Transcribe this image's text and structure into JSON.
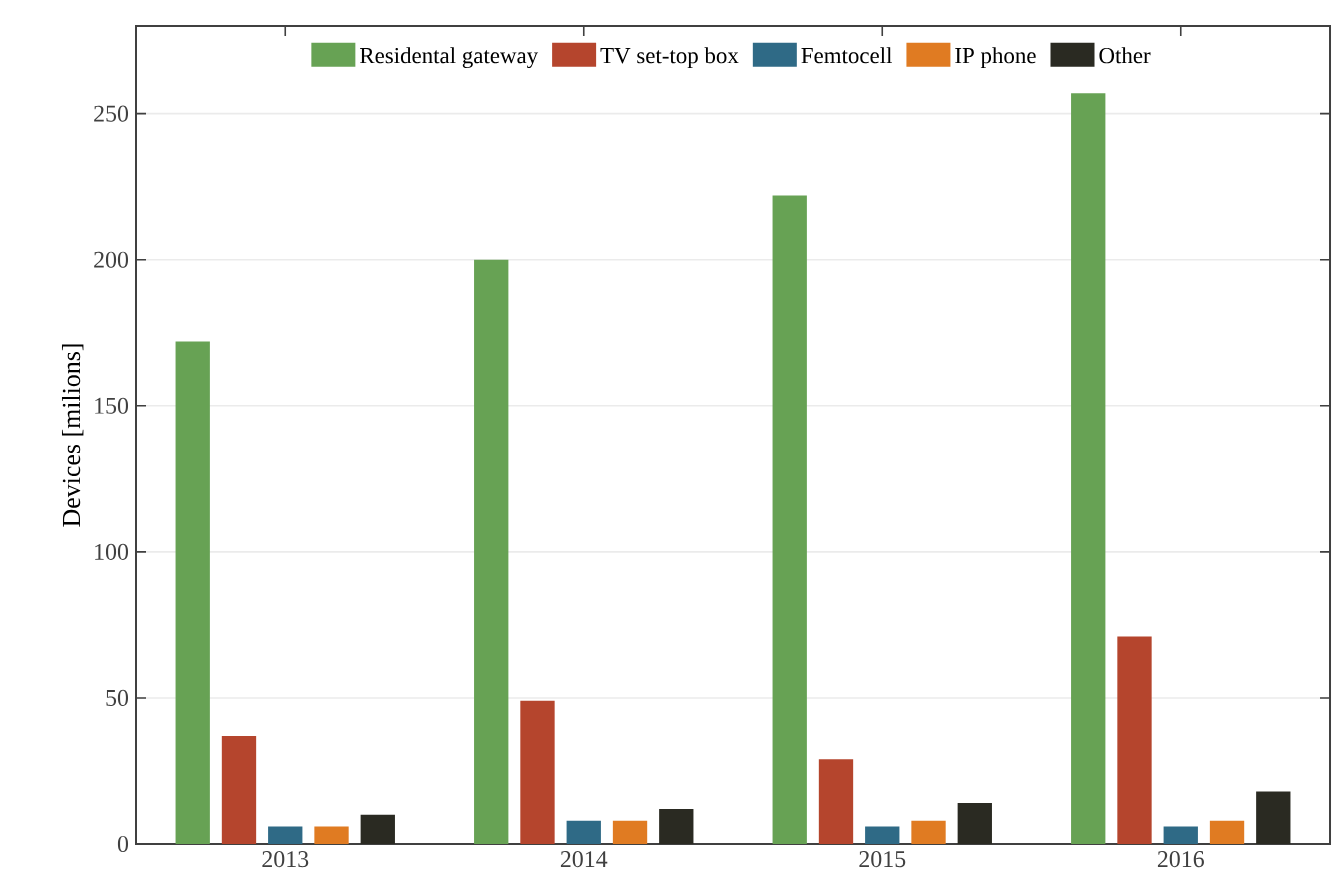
{
  "chart_data": {
    "type": "bar",
    "ylabel": "Devices [milions]",
    "categories": [
      "2013",
      "2014",
      "2015",
      "2016"
    ],
    "series": [
      {
        "name": "Residental gateway",
        "color": "#67a254",
        "values": [
          172,
          200,
          222,
          257
        ]
      },
      {
        "name": "TV set-top box",
        "color": "#b5452d",
        "values": [
          37,
          49,
          29,
          71
        ]
      },
      {
        "name": "Femtocell",
        "color": "#2f6a86",
        "values": [
          6,
          8,
          6,
          6
        ]
      },
      {
        "name": "IP phone",
        "color": "#e07b22",
        "values": [
          6,
          8,
          8,
          8
        ]
      },
      {
        "name": "Other",
        "color": "#2a2a22",
        "values": [
          10,
          12,
          14,
          18
        ]
      }
    ],
    "ylim": [
      0,
      280
    ],
    "yticks": [
      0,
      50,
      100,
      150,
      200,
      250
    ],
    "grid": "y",
    "legend": "top"
  }
}
